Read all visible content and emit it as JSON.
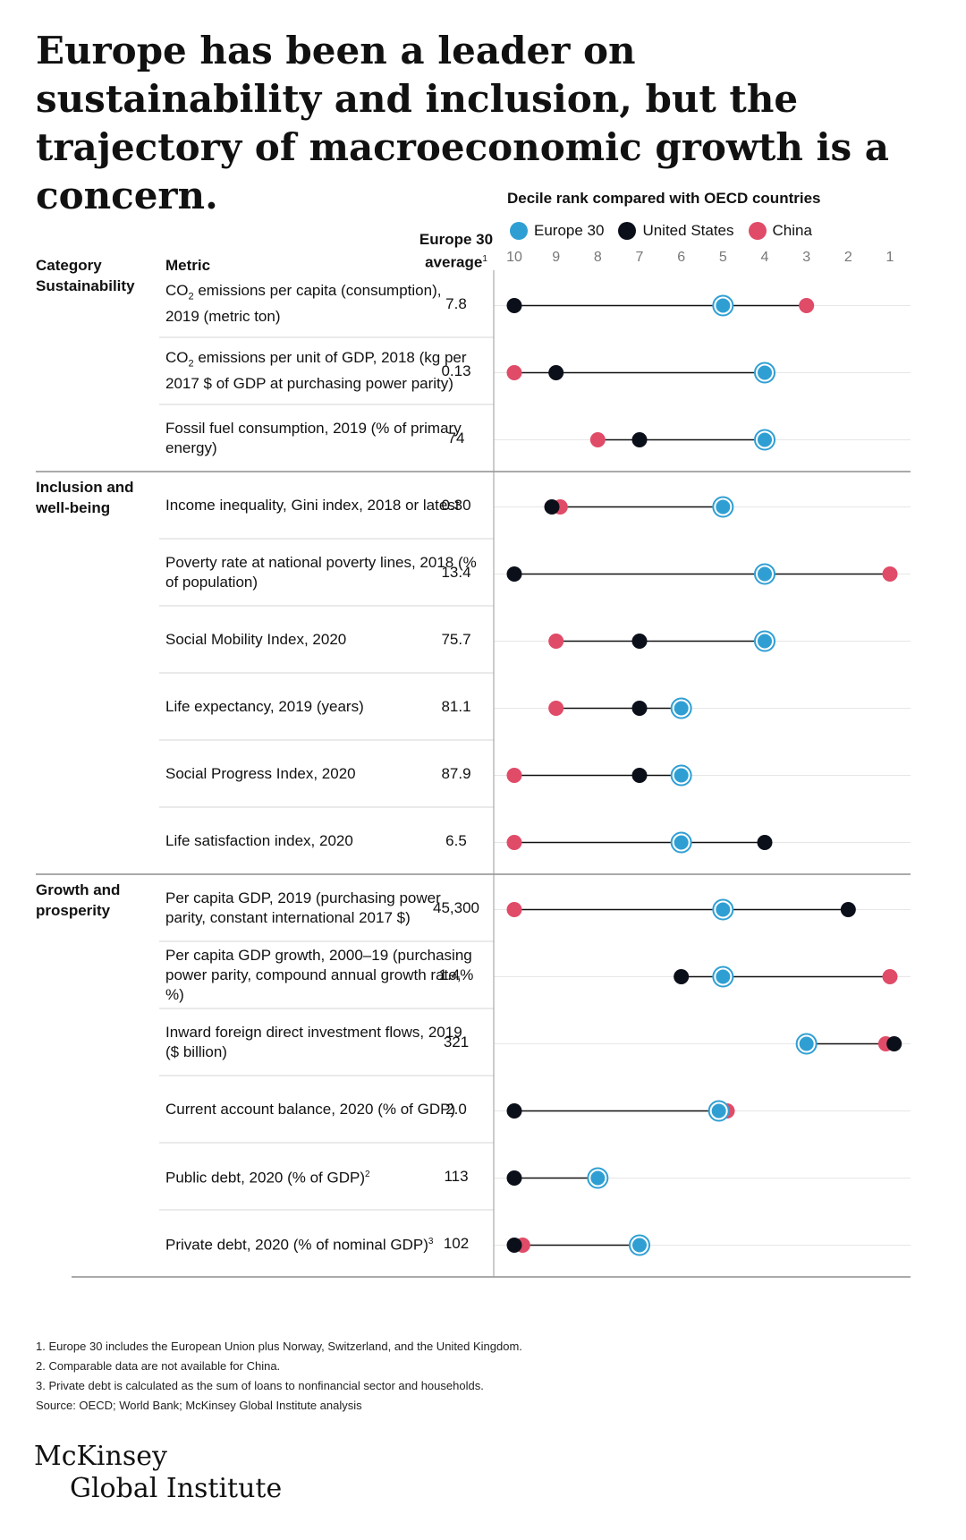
{
  "title": "Europe has been a leader on sustainability and inclusion, but the trajectory of macroeconomic growth is a concern.",
  "chart_data": {
    "type": "dot-plot",
    "title": "Decile rank compared with OECD countries",
    "x_axis_ticks": [
      10,
      9,
      8,
      7,
      6,
      5,
      4,
      3,
      2,
      1
    ],
    "xlim": [
      10,
      1
    ],
    "series": [
      {
        "key": "europe",
        "name": "Europe 30",
        "color": "#2f9fd3"
      },
      {
        "key": "us",
        "name": "United States",
        "color": "#0b0f1a"
      },
      {
        "key": "china",
        "name": "China",
        "color": "#e04b68"
      }
    ],
    "headers": {
      "category": "Category",
      "metric": "Metric",
      "avg_line1": "Europe 30",
      "avg_line2": "average",
      "avg_sup": "1"
    },
    "groups": [
      {
        "category": "Sustainability",
        "rows": [
          {
            "metric_parts": [
              "CO",
              "2",
              " emissions per capita (consumption), 2019 (metric ton)"
            ],
            "avg": "7.8",
            "europe": 5,
            "us": 10,
            "china": 3
          },
          {
            "metric_parts": [
              "CO",
              "2",
              " emissions per unit of GDP, 2018 (kg per 2017 $ of GDP at purchasing power parity)"
            ],
            "avg": "0.13",
            "europe": 4,
            "us": 9,
            "china": 10
          },
          {
            "metric": "Fossil fuel consumption, 2019 (% of primary energy)",
            "avg": "74",
            "europe": 4,
            "us": 7,
            "china": 8
          }
        ]
      },
      {
        "category": "Inclusion and well-being",
        "rows": [
          {
            "metric": "Income inequality, Gini index, 2018 or latest",
            "avg": "0.30",
            "europe": 5,
            "us": 9.1,
            "china": 8.9
          },
          {
            "metric": "Poverty rate at national poverty lines, 2018 (% of population)",
            "avg": "13.4",
            "europe": 4,
            "us": 10,
            "china": 1
          },
          {
            "metric": "Social Mobility Index, 2020",
            "avg": "75.7",
            "europe": 4,
            "us": 7,
            "china": 9
          },
          {
            "metric": "Life expectancy, 2019 (years)",
            "avg": "81.1",
            "europe": 6,
            "us": 7,
            "china": 9
          },
          {
            "metric": "Social Progress Index, 2020",
            "avg": "87.9",
            "europe": 6,
            "us": 7,
            "china": 10
          },
          {
            "metric": "Life satisfaction index, 2020",
            "avg": "6.5",
            "europe": 6,
            "us": 4,
            "china": 10
          }
        ]
      },
      {
        "category": "Growth and prosperity",
        "rows": [
          {
            "metric": "Per capita GDP, 2019 (purchasing power parity, constant international 2017 $)",
            "avg": "45,300",
            "europe": 5,
            "us": 2,
            "china": 10
          },
          {
            "metric": "Per capita GDP growth, 2000–19 (purchasing power parity, compound annual growth rate, %)",
            "avg": "1.4%",
            "europe": 5,
            "us": 6,
            "china": 1
          },
          {
            "metric": "Inward foreign direct investment flows, 2019 ($ billion)",
            "avg": "321",
            "europe": 3,
            "us": 0.9,
            "china": 1.1
          },
          {
            "metric": "Current account balance, 2020 (% of GDP)",
            "avg": "2.0",
            "europe": 5.1,
            "us": 10,
            "china": 4.9
          },
          {
            "metric_parts": [
              "Public debt, 2020 (% of GDP)",
              "2"
            ],
            "avg": "113",
            "europe": 8,
            "us": 10,
            "china": null
          },
          {
            "metric_parts": [
              "Private debt, 2020 (% of nominal GDP)",
              "3"
            ],
            "avg": "102",
            "europe": 7,
            "us": 10,
            "china": 9.8
          }
        ]
      }
    ]
  },
  "footnotes": [
    "1. Europe 30 includes the European Union plus Norway, Switzerland, and the United Kingdom.",
    "2. Comparable data are not available for China.",
    "3. Private debt is calculated as the sum of loans to nonfinancial sector and households.",
    "Source: OECD; World Bank; McKinsey Global Institute analysis"
  ],
  "logo": {
    "line1": "McKinsey",
    "line2": "Global Institute"
  }
}
